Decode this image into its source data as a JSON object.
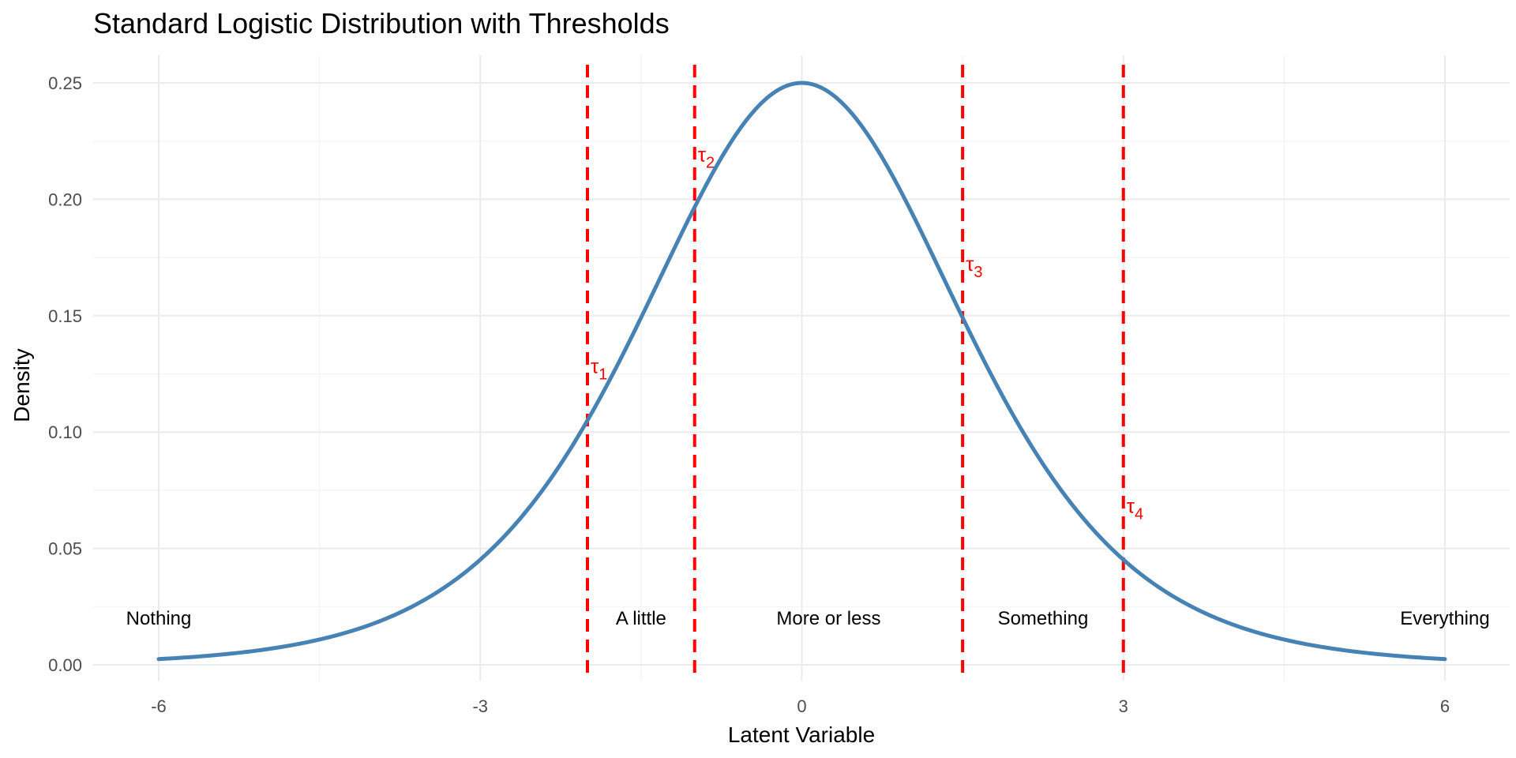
{
  "chart_data": {
    "type": "line",
    "title": "Standard Logistic Distribution with Thresholds",
    "xlabel": "Latent Variable",
    "ylabel": "Density",
    "xlim": [
      -6,
      6
    ],
    "ylim": [
      0,
      0.25
    ],
    "x_ticks": [
      -6,
      -3,
      0,
      3,
      6
    ],
    "x_tick_labels": [
      "-6",
      "-3",
      "0",
      "3",
      "6"
    ],
    "y_ticks": [
      0,
      0.05,
      0.1,
      0.15,
      0.2,
      0.25
    ],
    "y_tick_labels": [
      "0.00",
      "0.05",
      "0.10",
      "0.15",
      "0.20",
      "0.25"
    ],
    "grid": true,
    "series": [
      {
        "name": "",
        "color": "#4682B4",
        "x": [
          -6,
          -5.5,
          -5,
          -4.5,
          -4,
          -3.5,
          -3,
          -2.75,
          -2.5,
          -2.25,
          -2,
          -1.75,
          -1.5,
          -1.25,
          -1,
          -0.75,
          -0.5,
          -0.25,
          0,
          0.25,
          0.5,
          0.75,
          1,
          1.25,
          1.5,
          1.75,
          2,
          2.25,
          2.5,
          2.75,
          3,
          3.5,
          4,
          4.5,
          5,
          5.5,
          6
        ],
        "y": [
          0.0025,
          0.0041,
          0.0066,
          0.0109,
          0.0177,
          0.0285,
          0.0452,
          0.0564,
          0.0701,
          0.0864,
          0.105,
          0.1257,
          0.1491,
          0.1731,
          0.1966,
          0.2179,
          0.235,
          0.2461,
          0.25,
          0.2461,
          0.235,
          0.2179,
          0.1966,
          0.1731,
          0.1491,
          0.1257,
          0.105,
          0.0864,
          0.0701,
          0.0564,
          0.0452,
          0.0285,
          0.0177,
          0.0109,
          0.0066,
          0.0041,
          0.0025
        ]
      }
    ],
    "thresholds": [
      {
        "symbol": "τ",
        "subscript": "1",
        "x": -2,
        "label_y": 0.128
      },
      {
        "symbol": "τ",
        "subscript": "2",
        "x": -1,
        "label_y": 0.219
      },
      {
        "symbol": "τ",
        "subscript": "3",
        "x": 1.5,
        "label_y": 0.172
      },
      {
        "symbol": "τ",
        "subscript": "4",
        "x": 3,
        "label_y": 0.068
      }
    ],
    "threshold_color": "#FF0000",
    "category_labels": [
      {
        "text": "Nothing",
        "x": -6,
        "y": 0.02
      },
      {
        "text": "A little",
        "x": -1.5,
        "y": 0.02
      },
      {
        "text": "More or less",
        "x": 0.25,
        "y": 0.02
      },
      {
        "text": "Something",
        "x": 2.25,
        "y": 0.02
      },
      {
        "text": "Everything",
        "x": 6,
        "y": 0.02
      }
    ]
  }
}
